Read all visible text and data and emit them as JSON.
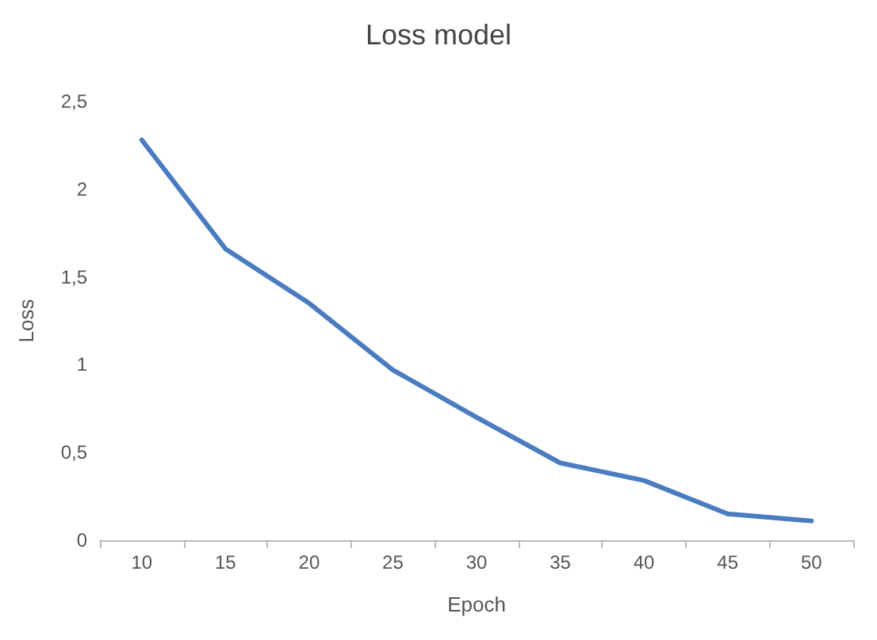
{
  "chart_data": {
    "type": "line",
    "title": "Loss model",
    "xlabel": "Epoch",
    "ylabel": "Loss",
    "categories": [
      "10",
      "15",
      "20",
      "25",
      "30",
      "35",
      "40",
      "45",
      "50"
    ],
    "series": [
      {
        "color": "#4a7cc0",
        "values": [
          2.28,
          1.66,
          1.35,
          0.97,
          0.7,
          0.44,
          0.34,
          0.15,
          0.11
        ]
      }
    ],
    "ylim": [
      0,
      2.5
    ],
    "yticks": [
      0,
      {
        "value": 0.5,
        "label": "0,5"
      },
      1,
      {
        "value": 1.5,
        "label": "1,5"
      },
      2,
      {
        "value": 2.5,
        "label": "2,5"
      }
    ],
    "grid": false,
    "marker": "none",
    "line_style": "solid"
  }
}
